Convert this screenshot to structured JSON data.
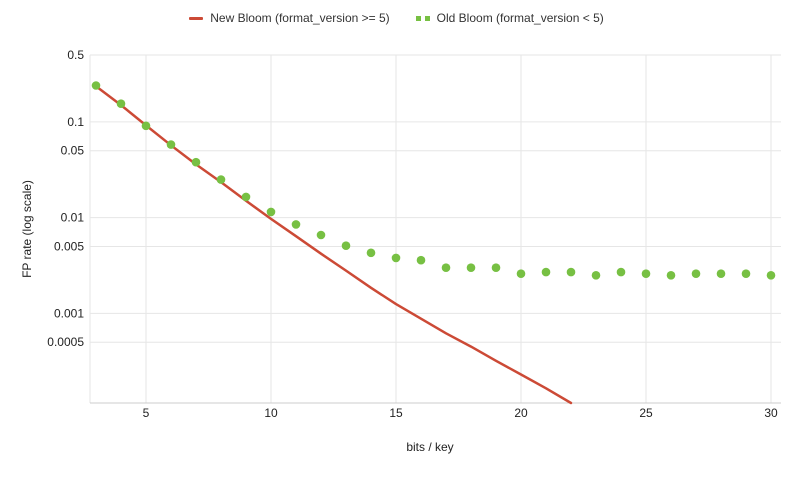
{
  "chart_data": {
    "type": "line",
    "title": "",
    "xlabel": "bits / key",
    "ylabel": "FP rate (log scale)",
    "y_scale": "log",
    "grid": true,
    "legend_position": "top-center",
    "background_color": "#ffffff",
    "grid_color": "#e6e6e6",
    "axis_line_color": "#cccccc",
    "tick_label_color": "#222222",
    "x_ticks": [
      5,
      10,
      15,
      20,
      25,
      30
    ],
    "y_ticks": [
      "0.5",
      "0.1",
      "0.05",
      "0.01",
      "0.005",
      "0.001",
      "0.0005"
    ],
    "x_range": [
      2.76,
      30.4
    ],
    "y_range": [
      0.000116,
      0.5
    ],
    "legend_markers": [
      "line-dash-icon",
      "dots-pair-icon"
    ],
    "series": [
      {
        "name": "New Bloom (format_version >= 5)",
        "type": "line",
        "color": "#cc4a36",
        "x": [
          3,
          4,
          5,
          6,
          7,
          8,
          9,
          10,
          11,
          12,
          13,
          14,
          15,
          16,
          17,
          18,
          19,
          20,
          21,
          22
        ],
        "values": [
          0.236,
          0.15,
          0.092,
          0.057,
          0.036,
          0.0235,
          0.015,
          0.0097,
          0.0064,
          0.0042,
          0.0028,
          0.00185,
          0.00125,
          0.00088,
          0.00062,
          0.00045,
          0.00032,
          0.00023,
          0.000165,
          0.000116
        ]
      },
      {
        "name": "Old Bloom (format_version < 5)",
        "type": "points",
        "color": "#77c043",
        "x": [
          3,
          4,
          5,
          6,
          7,
          8,
          9,
          10,
          11,
          12,
          13,
          14,
          15,
          16,
          17,
          18,
          19,
          20,
          21,
          22,
          23,
          24,
          25,
          26,
          27,
          28,
          29,
          30
        ],
        "values": [
          0.24,
          0.155,
          0.091,
          0.058,
          0.038,
          0.025,
          0.0165,
          0.0115,
          0.0085,
          0.0066,
          0.0051,
          0.0043,
          0.0038,
          0.0036,
          0.003,
          0.003,
          0.003,
          0.0026,
          0.0027,
          0.0027,
          0.0025,
          0.0027,
          0.0026,
          0.0025,
          0.0026,
          0.0026,
          0.0026,
          0.0025
        ]
      }
    ]
  }
}
